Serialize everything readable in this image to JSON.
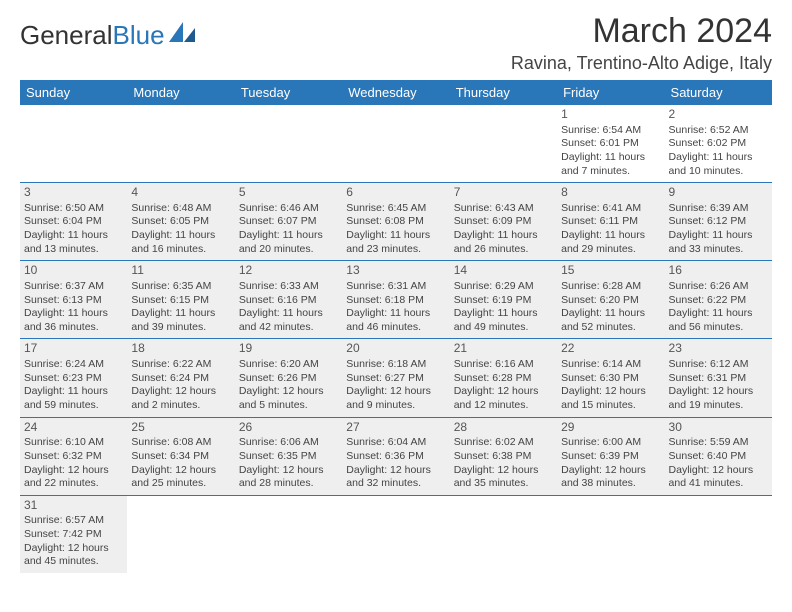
{
  "logo": {
    "text1": "General",
    "text2": "Blue"
  },
  "title": "March 2024",
  "location": "Ravina, Trentino-Alto Adige, Italy",
  "colors": {
    "header_bg": "#2976b8",
    "header_fg": "#ffffff",
    "shade_bg": "#efefef",
    "text": "#444444",
    "rule": "#2976b8"
  },
  "typography": {
    "title_fontsize": 34,
    "location_fontsize": 18,
    "dayheader_fontsize": 13,
    "cell_fontsize": 10.5,
    "daynum_fontsize": 12
  },
  "day_names": [
    "Sunday",
    "Monday",
    "Tuesday",
    "Wednesday",
    "Thursday",
    "Friday",
    "Saturday"
  ],
  "weeks": [
    [
      {
        "day": "",
        "sunrise": "",
        "sunset": "",
        "daylight": "",
        "shade": false
      },
      {
        "day": "",
        "sunrise": "",
        "sunset": "",
        "daylight": "",
        "shade": false
      },
      {
        "day": "",
        "sunrise": "",
        "sunset": "",
        "daylight": "",
        "shade": false
      },
      {
        "day": "",
        "sunrise": "",
        "sunset": "",
        "daylight": "",
        "shade": false
      },
      {
        "day": "",
        "sunrise": "",
        "sunset": "",
        "daylight": "",
        "shade": false
      },
      {
        "day": "1",
        "sunrise": "Sunrise: 6:54 AM",
        "sunset": "Sunset: 6:01 PM",
        "daylight": "Daylight: 11 hours and 7 minutes.",
        "shade": false
      },
      {
        "day": "2",
        "sunrise": "Sunrise: 6:52 AM",
        "sunset": "Sunset: 6:02 PM",
        "daylight": "Daylight: 11 hours and 10 minutes.",
        "shade": false
      }
    ],
    [
      {
        "day": "3",
        "sunrise": "Sunrise: 6:50 AM",
        "sunset": "Sunset: 6:04 PM",
        "daylight": "Daylight: 11 hours and 13 minutes.",
        "shade": true
      },
      {
        "day": "4",
        "sunrise": "Sunrise: 6:48 AM",
        "sunset": "Sunset: 6:05 PM",
        "daylight": "Daylight: 11 hours and 16 minutes.",
        "shade": true
      },
      {
        "day": "5",
        "sunrise": "Sunrise: 6:46 AM",
        "sunset": "Sunset: 6:07 PM",
        "daylight": "Daylight: 11 hours and 20 minutes.",
        "shade": true
      },
      {
        "day": "6",
        "sunrise": "Sunrise: 6:45 AM",
        "sunset": "Sunset: 6:08 PM",
        "daylight": "Daylight: 11 hours and 23 minutes.",
        "shade": true
      },
      {
        "day": "7",
        "sunrise": "Sunrise: 6:43 AM",
        "sunset": "Sunset: 6:09 PM",
        "daylight": "Daylight: 11 hours and 26 minutes.",
        "shade": true
      },
      {
        "day": "8",
        "sunrise": "Sunrise: 6:41 AM",
        "sunset": "Sunset: 6:11 PM",
        "daylight": "Daylight: 11 hours and 29 minutes.",
        "shade": true
      },
      {
        "day": "9",
        "sunrise": "Sunrise: 6:39 AM",
        "sunset": "Sunset: 6:12 PM",
        "daylight": "Daylight: 11 hours and 33 minutes.",
        "shade": true
      }
    ],
    [
      {
        "day": "10",
        "sunrise": "Sunrise: 6:37 AM",
        "sunset": "Sunset: 6:13 PM",
        "daylight": "Daylight: 11 hours and 36 minutes.",
        "shade": true
      },
      {
        "day": "11",
        "sunrise": "Sunrise: 6:35 AM",
        "sunset": "Sunset: 6:15 PM",
        "daylight": "Daylight: 11 hours and 39 minutes.",
        "shade": true
      },
      {
        "day": "12",
        "sunrise": "Sunrise: 6:33 AM",
        "sunset": "Sunset: 6:16 PM",
        "daylight": "Daylight: 11 hours and 42 minutes.",
        "shade": true
      },
      {
        "day": "13",
        "sunrise": "Sunrise: 6:31 AM",
        "sunset": "Sunset: 6:18 PM",
        "daylight": "Daylight: 11 hours and 46 minutes.",
        "shade": true
      },
      {
        "day": "14",
        "sunrise": "Sunrise: 6:29 AM",
        "sunset": "Sunset: 6:19 PM",
        "daylight": "Daylight: 11 hours and 49 minutes.",
        "shade": true
      },
      {
        "day": "15",
        "sunrise": "Sunrise: 6:28 AM",
        "sunset": "Sunset: 6:20 PM",
        "daylight": "Daylight: 11 hours and 52 minutes.",
        "shade": true
      },
      {
        "day": "16",
        "sunrise": "Sunrise: 6:26 AM",
        "sunset": "Sunset: 6:22 PM",
        "daylight": "Daylight: 11 hours and 56 minutes.",
        "shade": true
      }
    ],
    [
      {
        "day": "17",
        "sunrise": "Sunrise: 6:24 AM",
        "sunset": "Sunset: 6:23 PM",
        "daylight": "Daylight: 11 hours and 59 minutes.",
        "shade": true
      },
      {
        "day": "18",
        "sunrise": "Sunrise: 6:22 AM",
        "sunset": "Sunset: 6:24 PM",
        "daylight": "Daylight: 12 hours and 2 minutes.",
        "shade": true
      },
      {
        "day": "19",
        "sunrise": "Sunrise: 6:20 AM",
        "sunset": "Sunset: 6:26 PM",
        "daylight": "Daylight: 12 hours and 5 minutes.",
        "shade": true
      },
      {
        "day": "20",
        "sunrise": "Sunrise: 6:18 AM",
        "sunset": "Sunset: 6:27 PM",
        "daylight": "Daylight: 12 hours and 9 minutes.",
        "shade": true
      },
      {
        "day": "21",
        "sunrise": "Sunrise: 6:16 AM",
        "sunset": "Sunset: 6:28 PM",
        "daylight": "Daylight: 12 hours and 12 minutes.",
        "shade": true
      },
      {
        "day": "22",
        "sunrise": "Sunrise: 6:14 AM",
        "sunset": "Sunset: 6:30 PM",
        "daylight": "Daylight: 12 hours and 15 minutes.",
        "shade": true
      },
      {
        "day": "23",
        "sunrise": "Sunrise: 6:12 AM",
        "sunset": "Sunset: 6:31 PM",
        "daylight": "Daylight: 12 hours and 19 minutes.",
        "shade": true
      }
    ],
    [
      {
        "day": "24",
        "sunrise": "Sunrise: 6:10 AM",
        "sunset": "Sunset: 6:32 PM",
        "daylight": "Daylight: 12 hours and 22 minutes.",
        "shade": true
      },
      {
        "day": "25",
        "sunrise": "Sunrise: 6:08 AM",
        "sunset": "Sunset: 6:34 PM",
        "daylight": "Daylight: 12 hours and 25 minutes.",
        "shade": true
      },
      {
        "day": "26",
        "sunrise": "Sunrise: 6:06 AM",
        "sunset": "Sunset: 6:35 PM",
        "daylight": "Daylight: 12 hours and 28 minutes.",
        "shade": true
      },
      {
        "day": "27",
        "sunrise": "Sunrise: 6:04 AM",
        "sunset": "Sunset: 6:36 PM",
        "daylight": "Daylight: 12 hours and 32 minutes.",
        "shade": true
      },
      {
        "day": "28",
        "sunrise": "Sunrise: 6:02 AM",
        "sunset": "Sunset: 6:38 PM",
        "daylight": "Daylight: 12 hours and 35 minutes.",
        "shade": true
      },
      {
        "day": "29",
        "sunrise": "Sunrise: 6:00 AM",
        "sunset": "Sunset: 6:39 PM",
        "daylight": "Daylight: 12 hours and 38 minutes.",
        "shade": true
      },
      {
        "day": "30",
        "sunrise": "Sunrise: 5:59 AM",
        "sunset": "Sunset: 6:40 PM",
        "daylight": "Daylight: 12 hours and 41 minutes.",
        "shade": true
      }
    ],
    [
      {
        "day": "31",
        "sunrise": "Sunrise: 6:57 AM",
        "sunset": "Sunset: 7:42 PM",
        "daylight": "Daylight: 12 hours and 45 minutes.",
        "shade": true
      },
      {
        "day": "",
        "sunrise": "",
        "sunset": "",
        "daylight": "",
        "shade": false
      },
      {
        "day": "",
        "sunrise": "",
        "sunset": "",
        "daylight": "",
        "shade": false
      },
      {
        "day": "",
        "sunrise": "",
        "sunset": "",
        "daylight": "",
        "shade": false
      },
      {
        "day": "",
        "sunrise": "",
        "sunset": "",
        "daylight": "",
        "shade": false
      },
      {
        "day": "",
        "sunrise": "",
        "sunset": "",
        "daylight": "",
        "shade": false
      },
      {
        "day": "",
        "sunrise": "",
        "sunset": "",
        "daylight": "",
        "shade": false
      }
    ]
  ]
}
